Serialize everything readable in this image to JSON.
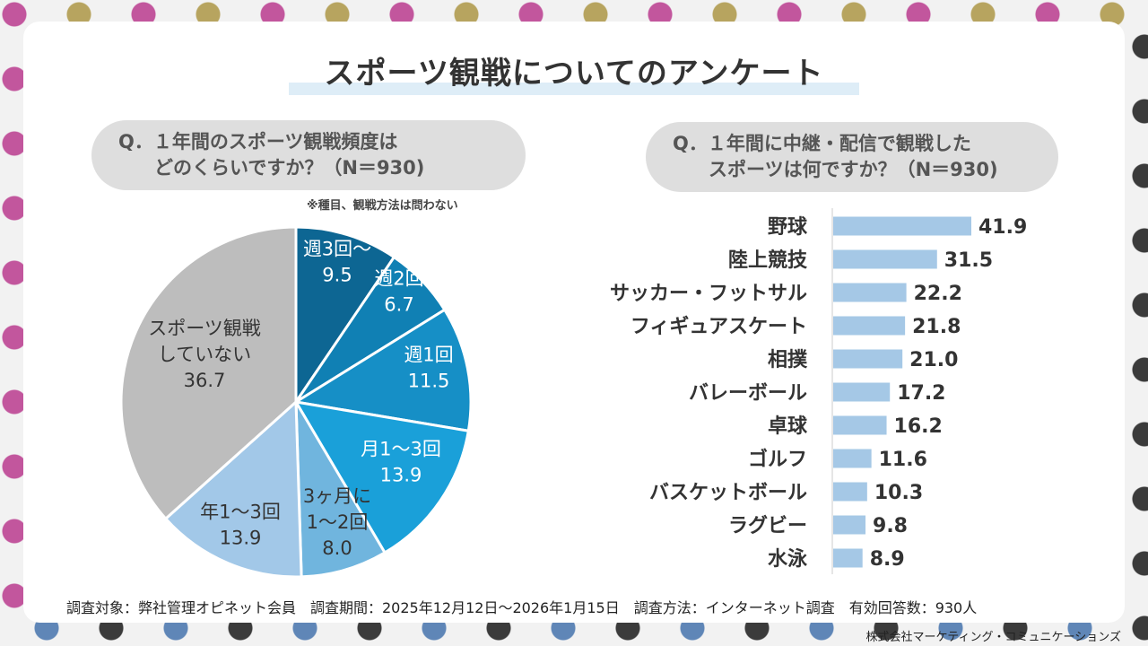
{
  "title": "スポーツ観戦についてのアンケート",
  "q1": {
    "line1": "Q．１年間のスポーツ観戦頻度は",
    "line2": "どのくらいですか？（N＝930)"
  },
  "q2": {
    "line1": "Q．１年間に中継・配信で観戦した",
    "line2": "スポーツは何ですか？（N＝930)"
  },
  "note": "※種目、観戦方法は問わない",
  "footer": "調査対象：弊社管理オピネット会員　調査期間：2025年12月12日～2026年1月15日　調査方法：インターネット調査　有効回答数：930人",
  "company": "株式会社マーケティング・コミュニケーションズ",
  "colors": {
    "pie": [
      "#0d6693",
      "#1080b4",
      "#168fc6",
      "#1aa0d9",
      "#70b5de",
      "#a2c8e8",
      "#bdbdbd"
    ],
    "bar": "#a5c8e6"
  },
  "chart_data": [
    {
      "type": "pie",
      "title": "Q．１年間のスポーツ観戦頻度はどのくらいですか？（N＝930)",
      "slices": [
        {
          "label": "週3回～",
          "value": 9.5
        },
        {
          "label": "週2回",
          "value": 6.7
        },
        {
          "label": "週1回",
          "value": 11.5
        },
        {
          "label": "月1～3回",
          "value": 13.9
        },
        {
          "label": "3ヶ月に 1～2回",
          "value": 8.0
        },
        {
          "label": "年1～3回",
          "value": 13.9
        },
        {
          "label": "スポーツ観戦 していない",
          "value": 36.7
        }
      ]
    },
    {
      "type": "bar",
      "orientation": "horizontal",
      "title": "Q．１年間に中継・配信で観戦したスポーツは何ですか？（N＝930)",
      "categories": [
        "野球",
        "陸上競技",
        "サッカー・フットサル",
        "フィギュアスケート",
        "相撲",
        "バレーボール",
        "卓球",
        "ゴルフ",
        "バスケットボール",
        "ラグビー",
        "水泳"
      ],
      "values": [
        41.9,
        31.5,
        22.2,
        21.8,
        21.0,
        17.2,
        16.2,
        11.6,
        10.3,
        9.8,
        8.9
      ],
      "value_labels": [
        "41.9",
        "31.5",
        "22.2",
        "21.8",
        "21.0",
        "17.2",
        "16.2",
        "11.6",
        "10.3",
        "9.8",
        "8.9"
      ],
      "xlim": [
        0,
        45
      ]
    }
  ]
}
